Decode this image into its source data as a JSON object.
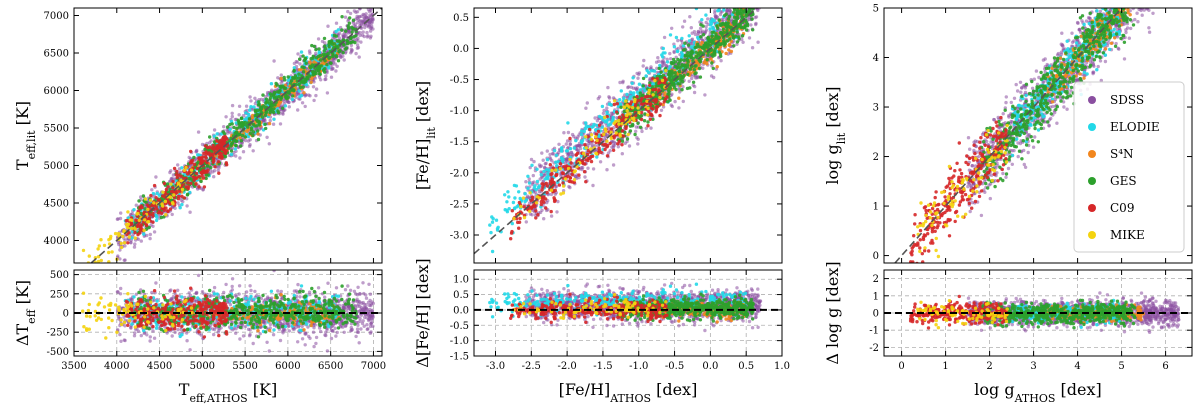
{
  "legend": {
    "title": "",
    "placement": "right (third panel)",
    "entries": [
      {
        "label": "SDSS",
        "color": "#8a4fa0"
      },
      {
        "label": "ELODIE",
        "color": "#22d8e8"
      },
      {
        "label": "S⁴N",
        "color": "#f2861d"
      },
      {
        "label": "GES",
        "color": "#2ca02c"
      },
      {
        "label": "C09",
        "color": "#d62728"
      },
      {
        "label": "MIKE",
        "color": "#f4d30f"
      }
    ]
  },
  "chart_data": [
    {
      "id": "teff",
      "type": "scatter",
      "grid": false,
      "title": "",
      "xlabel": "T_eff,ATHOS [K]",
      "ylabel": "T_eff,lit [K]",
      "dylabel": "ΔT_eff [K]",
      "xlim": [
        3500,
        7100
      ],
      "ylim": [
        3700,
        7100
      ],
      "dlim": [
        -560,
        560
      ],
      "xticks": [
        3500,
        4000,
        4500,
        5000,
        5500,
        6000,
        6500,
        7000
      ],
      "yticks": [
        4000,
        4500,
        5000,
        5500,
        6000,
        6500,
        7000
      ],
      "dticks": [
        -500,
        -250,
        0,
        250,
        500
      ],
      "identity_line": true,
      "series": [
        {
          "name": "SDSS",
          "x_range": [
            4000,
            7000
          ],
          "offset": 0,
          "scatter": 140,
          "points_shown": 1400
        },
        {
          "name": "ELODIE",
          "x_range": [
            4100,
            6600
          ],
          "offset": 20,
          "scatter": 110,
          "points_shown": 350
        },
        {
          "name": "S⁴N",
          "x_range": [
            4700,
            6600
          ],
          "offset": -20,
          "scatter": 80,
          "points_shown": 180
        },
        {
          "name": "GES",
          "x_range": [
            4200,
            6800
          ],
          "offset": 0,
          "scatter": 110,
          "points_shown": 550
        },
        {
          "name": "C09",
          "x_range": [
            4100,
            5300
          ],
          "offset": 0,
          "scatter": 110,
          "points_shown": 280
        },
        {
          "name": "MIKE",
          "x_range": [
            3600,
            4900
          ],
          "offset": 0,
          "scatter": 110,
          "points_shown": 90
        }
      ]
    },
    {
      "id": "feh",
      "type": "scatter",
      "grid": false,
      "title": "",
      "xlabel": "[Fe/H]_ATHOS [dex]",
      "ylabel": "[Fe/H]_lit [dex]",
      "dylabel": "Δ[Fe/H] [dex]",
      "xlim": [
        -3.3,
        1.0
      ],
      "ylim": [
        -3.45,
        0.65
      ],
      "dlim": [
        -1.5,
        1.3
      ],
      "xticks": [
        -3.0,
        -2.5,
        -2.0,
        -1.5,
        -1.0,
        -0.5,
        0.0,
        0.5,
        1.0
      ],
      "yticks": [
        -3.0,
        -2.5,
        -2.0,
        -1.5,
        -1.0,
        -0.5,
        0.0,
        0.5
      ],
      "dticks": [
        -1.5,
        -1.0,
        -0.5,
        0.0,
        0.5,
        1.0
      ],
      "identity_line": true,
      "series": [
        {
          "name": "SDSS",
          "x_range": [
            -2.6,
            0.7
          ],
          "offset": 0.15,
          "scatter": 0.25,
          "points_shown": 1400
        },
        {
          "name": "ELODIE",
          "x_range": [
            -3.1,
            0.5
          ],
          "offset": 0.25,
          "scatter": 0.18,
          "points_shown": 350
        },
        {
          "name": "S⁴N",
          "x_range": [
            -0.8,
            0.5
          ],
          "offset": 0.0,
          "scatter": 0.12,
          "points_shown": 180
        },
        {
          "name": "GES",
          "x_range": [
            -1.3,
            0.6
          ],
          "offset": 0.05,
          "scatter": 0.15,
          "points_shown": 550
        },
        {
          "name": "C09",
          "x_range": [
            -2.8,
            -0.6
          ],
          "offset": 0.0,
          "scatter": 0.15,
          "points_shown": 280
        },
        {
          "name": "MIKE",
          "x_range": [
            -2.8,
            -0.6
          ],
          "offset": 0.05,
          "scatter": 0.15,
          "points_shown": 90
        }
      ]
    },
    {
      "id": "logg",
      "type": "scatter",
      "grid": false,
      "title": "",
      "xlabel": "log g_ATHOS [dex]",
      "ylabel": "log g_lit [dex]",
      "dylabel": "Δ log g [dex]",
      "xlim": [
        -0.4,
        6.6
      ],
      "ylim": [
        -0.15,
        5.0
      ],
      "dlim": [
        -2.5,
        2.5
      ],
      "xticks": [
        0,
        1,
        2,
        3,
        4,
        5,
        6
      ],
      "yticks": [
        0,
        1,
        2,
        3,
        4,
        5
      ],
      "dticks": [
        -2,
        -1,
        0,
        1,
        2
      ],
      "identity_line": true,
      "series": [
        {
          "name": "SDSS",
          "x_range": [
            1.5,
            6.3
          ],
          "offset": 0,
          "scatter": 0.35,
          "points_shown": 1400
        },
        {
          "name": "ELODIE",
          "x_range": [
            2.5,
            5.0
          ],
          "offset": 0,
          "scatter": 0.25,
          "points_shown": 350
        },
        {
          "name": "S⁴N",
          "x_range": [
            3.3,
            5.5
          ],
          "offset": 0,
          "scatter": 0.2,
          "points_shown": 180
        },
        {
          "name": "GES",
          "x_range": [
            1.8,
            5.3
          ],
          "offset": 0,
          "scatter": 0.3,
          "points_shown": 550
        },
        {
          "name": "C09",
          "x_range": [
            0.2,
            2.4
          ],
          "offset": 0,
          "scatter": 0.3,
          "points_shown": 280
        },
        {
          "name": "MIKE",
          "x_range": [
            0.3,
            2.4
          ],
          "offset": 0,
          "scatter": 0.3,
          "points_shown": 90
        }
      ]
    }
  ]
}
